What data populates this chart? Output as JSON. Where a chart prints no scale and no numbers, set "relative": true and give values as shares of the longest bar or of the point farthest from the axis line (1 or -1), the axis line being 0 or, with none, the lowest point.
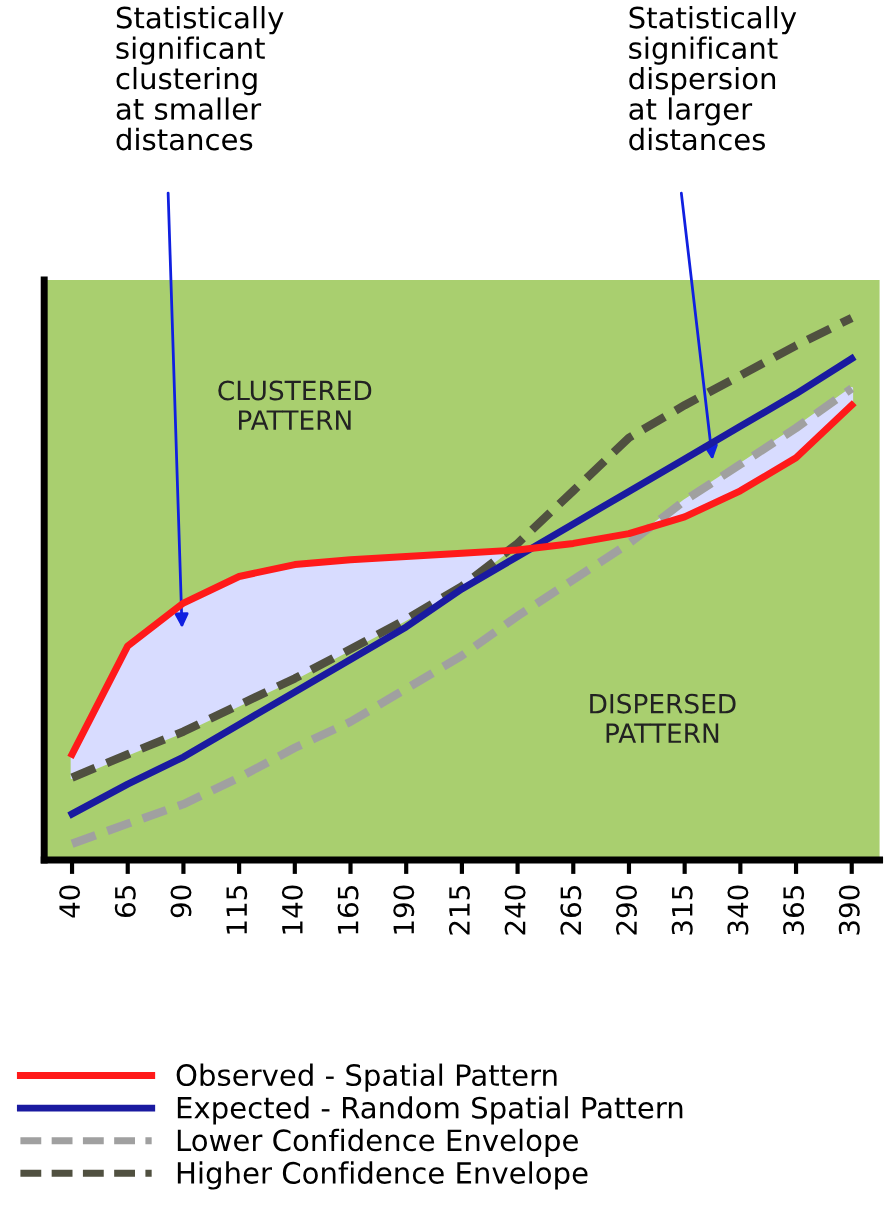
{
  "chart_data": {
    "type": "line",
    "relative": true,
    "categories": [
      "40",
      "65",
      "90",
      "115",
      "140",
      "165",
      "190",
      "215",
      "240",
      "265",
      "290",
      "315",
      "340",
      "365",
      "390"
    ],
    "series": [
      {
        "name": "Observed - Spatial Pattern",
        "color": "#ff1a1a",
        "line_style": "solid",
        "values": [
          0.195,
          0.395,
          0.474,
          0.523,
          0.545,
          0.554,
          0.56,
          0.566,
          0.572,
          0.584,
          0.602,
          0.633,
          0.681,
          0.742,
          0.839
        ]
      },
      {
        "name": "Expected - Random Spatial Pattern",
        "color": "#1a1aa0",
        "line_style": "solid",
        "values": [
          0.085,
          0.14,
          0.19,
          0.25,
          0.31,
          0.37,
          0.43,
          0.5,
          0.56,
          0.62,
          0.68,
          0.74,
          0.8,
          0.86,
          0.925
        ]
      },
      {
        "name": "Lower Confidence Envelope",
        "color": "#a0a0a0",
        "line_style": "dashed",
        "values": [
          0.03,
          0.067,
          0.103,
          0.152,
          0.207,
          0.255,
          0.316,
          0.377,
          0.45,
          0.517,
          0.584,
          0.663,
          0.73,
          0.797,
          0.87
        ]
      },
      {
        "name": "Higher Confidence Envelope",
        "color": "#505040",
        "line_style": "dashed",
        "values": [
          0.152,
          0.195,
          0.237,
          0.286,
          0.335,
          0.389,
          0.444,
          0.505,
          0.584,
          0.681,
          0.779,
          0.839,
          0.894,
          0.949,
          1.0
        ]
      }
    ],
    "annotations": [
      "Statistically\nsignificant\nclustering\nat smaller\ndistances",
      "Statistically\nsignificant\ndispersion\nat larger\ndistances",
      "CLUSTERED\nPATTERN",
      "DISPERSED\nPATTERN"
    ],
    "legend": "bottom",
    "grid": false,
    "marker": "none"
  }
}
